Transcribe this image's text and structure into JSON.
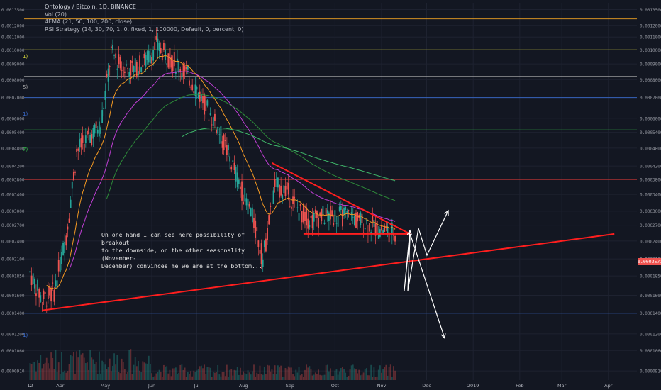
{
  "legend": {
    "title": "Ontology / Bitcoin, 1D, BINANCE",
    "vol": "Vol (20)",
    "ema": "4EMA (21, 50, 100, 200, close)",
    "rsi": "RSI Strategy (14, 30, 70, 1, 0, fixed, 1, 100000, Default, 0, percent, 0)"
  },
  "annotation": "On one hand I can see here possibility of breakout\nto the downside, on the other seasonality (November-\nDecember) convinces me we are at the bottom...",
  "current_price": "0.0002571",
  "level_labels": [
    "1)",
    "5)",
    "1)",
    "7)",
    "1)"
  ],
  "colors": {
    "background": "#131722",
    "grid": "#1e2230",
    "up": "#26a69a",
    "down": "#ef5350",
    "trendline": "#ff1e1e",
    "arrow": "#ffffff",
    "ema21": "#f59a23",
    "ema50": "#c13fd6",
    "ema100": "#2e8b3a",
    "ema200": "#3fb86a"
  },
  "chart_data": {
    "type": "candlestick",
    "title": "Ontology / Bitcoin, 1D, BINANCE",
    "xlabel": "",
    "ylabel": "",
    "x_tick_labels": [
      "12",
      "Apr",
      "May",
      "Jun",
      "Jul",
      "Aug",
      "Sep",
      "Oct",
      "Nov",
      "Dec",
      "2019",
      "Feb",
      "Mar",
      "Apr"
    ],
    "y_tick_labels_left": [
      "0.0013500",
      "0.0012000",
      "0.0011000",
      "0.0010000",
      "0.0009000",
      "0.0008000",
      "0.0007000",
      "0.0006000",
      "0.0005400",
      "0.0004800",
      "0.0004200",
      "0.0003800",
      "0.0003400",
      "0.0003000",
      "0.0002700",
      "0.0002400",
      "0.0002100",
      "0.0001850",
      "0.0001600",
      "0.0001400",
      "0.0001200",
      "0.0001060",
      "0.0000910"
    ],
    "y_tick_labels_right": [
      "0.0013500",
      "0.0012000",
      "0.0011000",
      "0.0010000",
      "0.0009000",
      "0.0008000",
      "0.0007000",
      "0.0006000",
      "0.0005400",
      "0.0004800",
      "0.0004200",
      "0.0003800",
      "0.0003400",
      "0.0003000",
      "0.0002700",
      "0.0002400",
      "0.0002100",
      "0.0001850",
      "0.0001600",
      "0.0001400",
      "0.0001200",
      "0.0001060",
      "0.0000910"
    ],
    "y_scale": "log",
    "ylim": [
      8.5e-05,
      0.00142
    ],
    "horizontal_levels": [
      {
        "price": 0.00126,
        "color": "#f5a623"
      },
      {
        "price": 0.001,
        "color": "#d4d43a"
      },
      {
        "price": 0.00082,
        "color": "#b0b0b0"
      },
      {
        "price": 0.0007,
        "color": "#3b6fd6"
      },
      {
        "price": 0.00055,
        "color": "#33c24a"
      },
      {
        "price": 0.00038,
        "color": "#e53935"
      },
      {
        "price": 0.00014,
        "color": "#3b6fd6"
      }
    ],
    "series": [
      {
        "name": "close",
        "dates": [
          "2018-03-12",
          "2018-03-20",
          "2018-03-28",
          "2018-04-05",
          "2018-04-12",
          "2018-04-20",
          "2018-04-28",
          "2018-05-05",
          "2018-05-12",
          "2018-05-20",
          "2018-05-28",
          "2018-06-04",
          "2018-06-12",
          "2018-06-20",
          "2018-06-28",
          "2018-07-06",
          "2018-07-14",
          "2018-07-22",
          "2018-07-30",
          "2018-08-06",
          "2018-08-14",
          "2018-08-22",
          "2018-08-30",
          "2018-09-07",
          "2018-09-15",
          "2018-09-23",
          "2018-10-01",
          "2018-10-09",
          "2018-10-17",
          "2018-10-25",
          "2018-11-02",
          "2018-11-10"
        ],
        "values": [
          0.00019,
          0.000155,
          0.000165,
          0.00025,
          0.00047,
          0.00052,
          0.00057,
          0.00098,
          0.00088,
          0.00087,
          0.00092,
          0.00103,
          0.00095,
          0.00088,
          0.00079,
          0.00067,
          0.00057,
          0.00046,
          0.00036,
          0.0003,
          0.00021,
          0.00036,
          0.00035,
          0.0003,
          0.00028,
          0.00029,
          0.00029,
          0.00029,
          0.00028,
          0.00027,
          0.00026,
          0.000257
        ]
      }
    ],
    "trendlines": [
      {
        "from": [
          "2018-08-20",
          0.00043
        ],
        "to": [
          "2018-11-20",
          0.000253
        ]
      },
      {
        "from": [
          "2018-09-10",
          0.000253
        ],
        "to": [
          "2018-11-20",
          0.000253
        ]
      },
      {
        "from": [
          "2018-03-20",
          0.000143
        ],
        "to": [
          "2019-04-05",
          0.000253
        ]
      }
    ]
  }
}
